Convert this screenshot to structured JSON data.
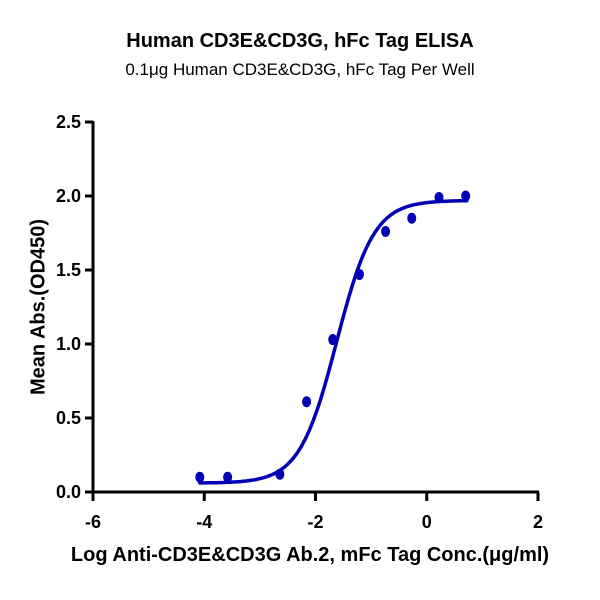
{
  "chart_data": {
    "type": "scatter",
    "title": "Human CD3E&CD3G, hFc Tag ELISA",
    "subtitle": "0.1μg Human CD3E&CD3G, hFc Tag Per Well",
    "xlabel": "Log Anti-CD3E&CD3G Ab.2, mFc Tag Conc.(μg/ml)",
    "ylabel": "Mean Abs.(OD450)",
    "xlim": [
      -6,
      2
    ],
    "ylim": [
      0,
      2.5
    ],
    "xticks": [
      "-6",
      "-4",
      "-2",
      "0",
      "2"
    ],
    "yticks": [
      "0.0",
      "0.5",
      "1.0",
      "1.5",
      "2.0",
      "2.5"
    ],
    "grid": false,
    "legend": null,
    "color": "#0000b4",
    "series": [
      {
        "name": "Mean Abs.(OD450)",
        "x": [
          -4.08,
          -3.58,
          -2.64,
          -2.16,
          -1.69,
          -1.21,
          -0.74,
          -0.27,
          0.22,
          0.7
        ],
        "y": [
          0.1,
          0.1,
          0.12,
          0.61,
          1.03,
          1.47,
          1.76,
          1.85,
          1.99,
          2.0
        ]
      }
    ],
    "fit": {
      "model": "4PL",
      "bottom": 0.06,
      "top": 1.97,
      "log_ec50": -1.62,
      "hill": 1.3,
      "x_range": [
        -4.08,
        0.72
      ]
    }
  }
}
